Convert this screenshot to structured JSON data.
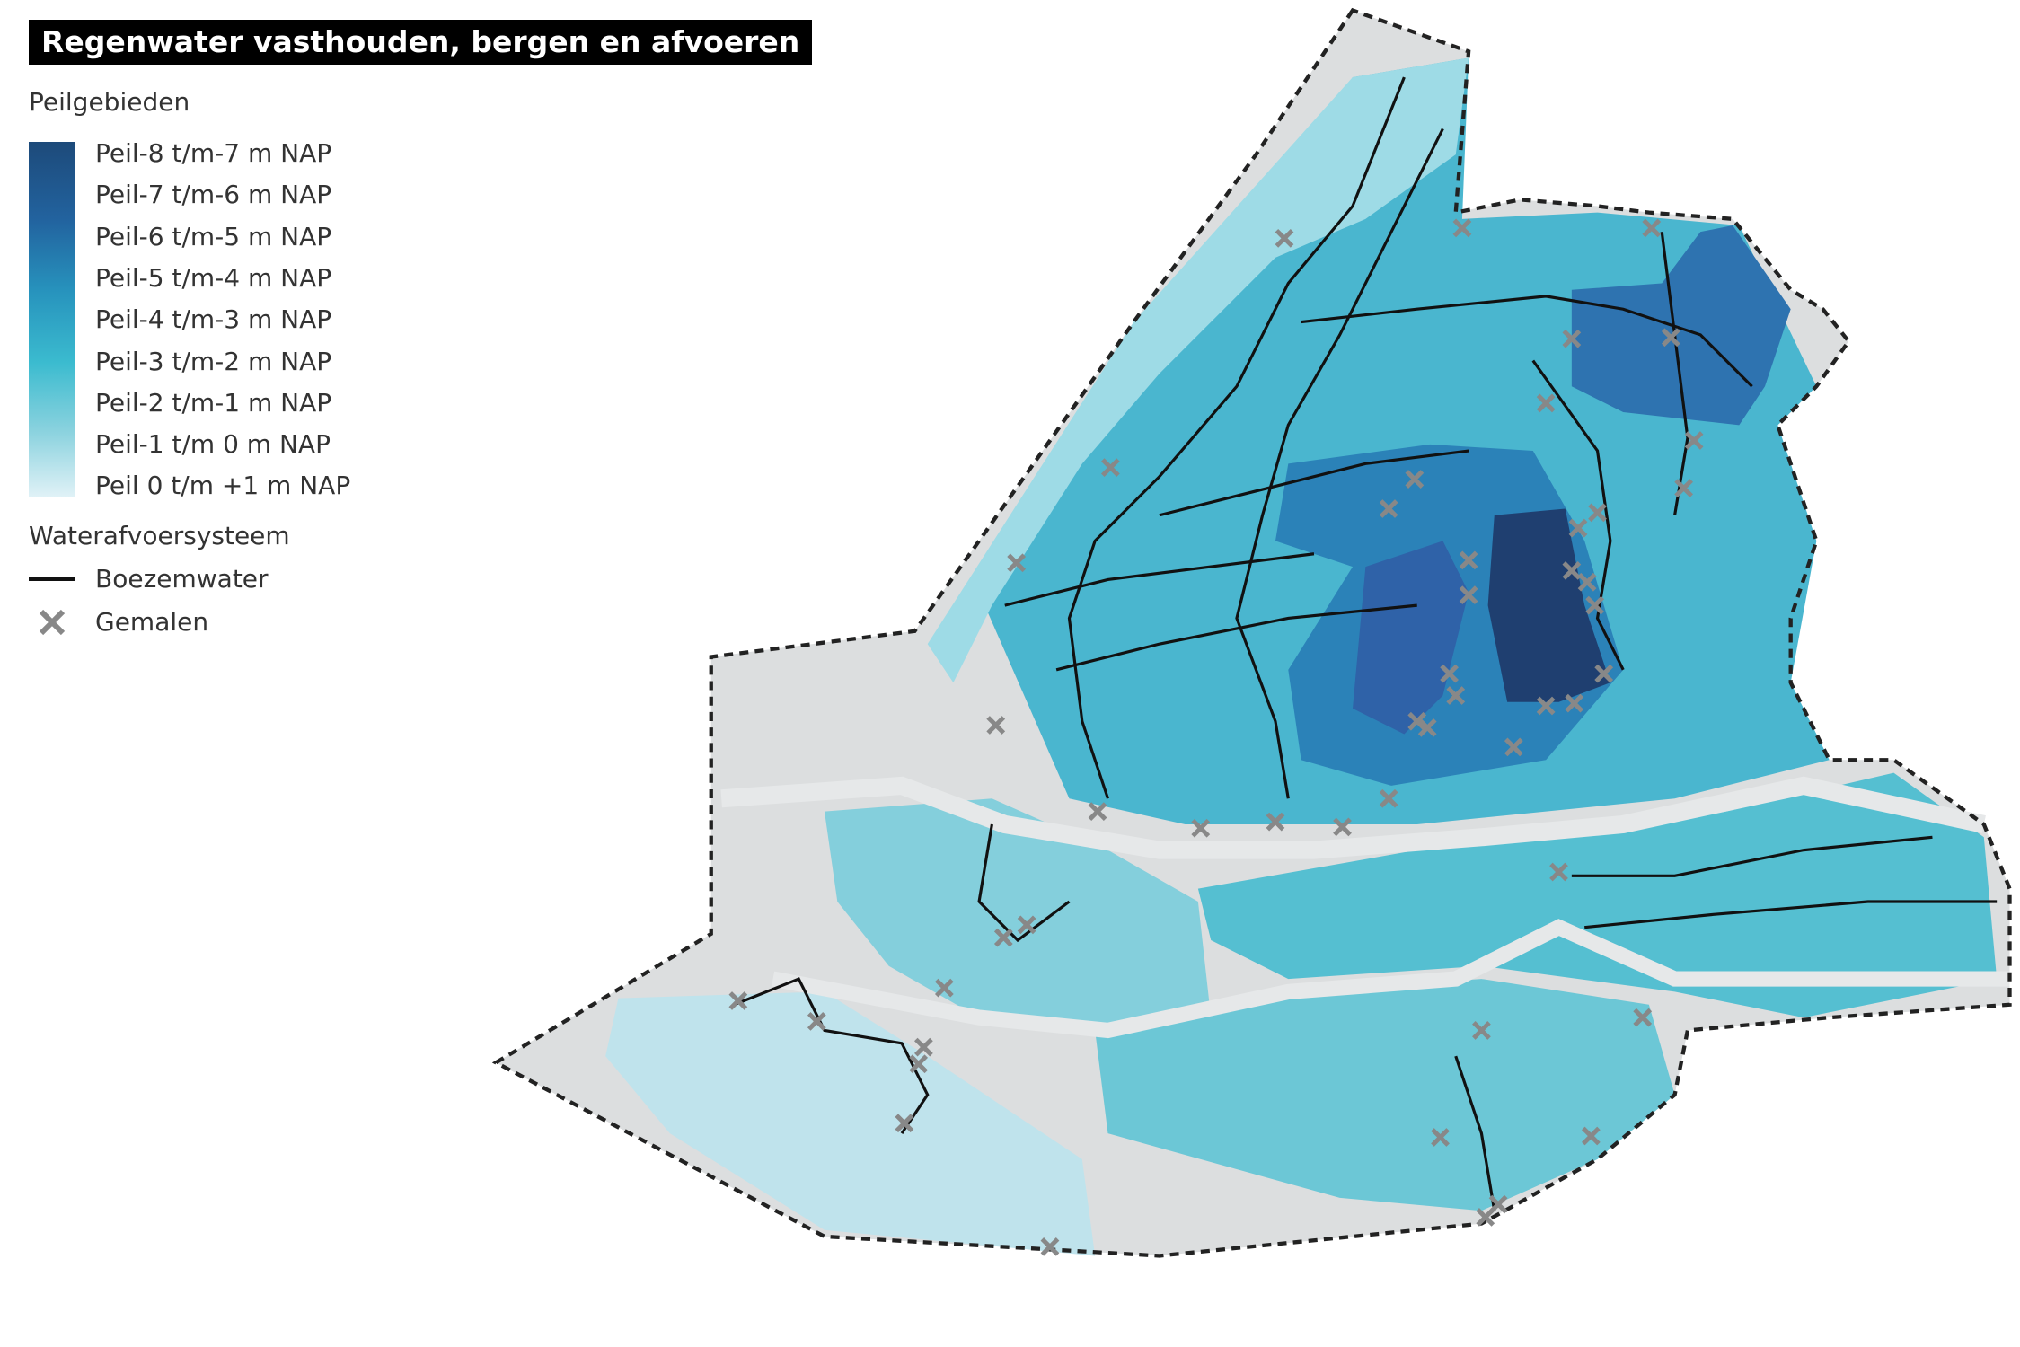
{
  "title": "Regenwater vasthouden, bergen en afvoeren",
  "legend": {
    "peilgebieden": {
      "title": "Peilgebieden",
      "items": [
        "Peil-8 t/m-7 m NAP",
        "Peil-7 t/m-6 m NAP",
        "Peil-6 t/m-5 m NAP",
        "Peil-5 t/m-4 m NAP",
        "Peil-4 t/m-3 m NAP",
        "Peil-3 t/m-2 m NAP",
        "Peil-2 t/m-1 m NAP",
        "Peil-1 t/m 0 m NAP",
        "Peil 0 t/m +1 m NAP"
      ]
    },
    "waterafvoer": {
      "title": "Waterafvoersysteem",
      "items": [
        "Boezemwater",
        "Gemalen"
      ]
    }
  }
}
